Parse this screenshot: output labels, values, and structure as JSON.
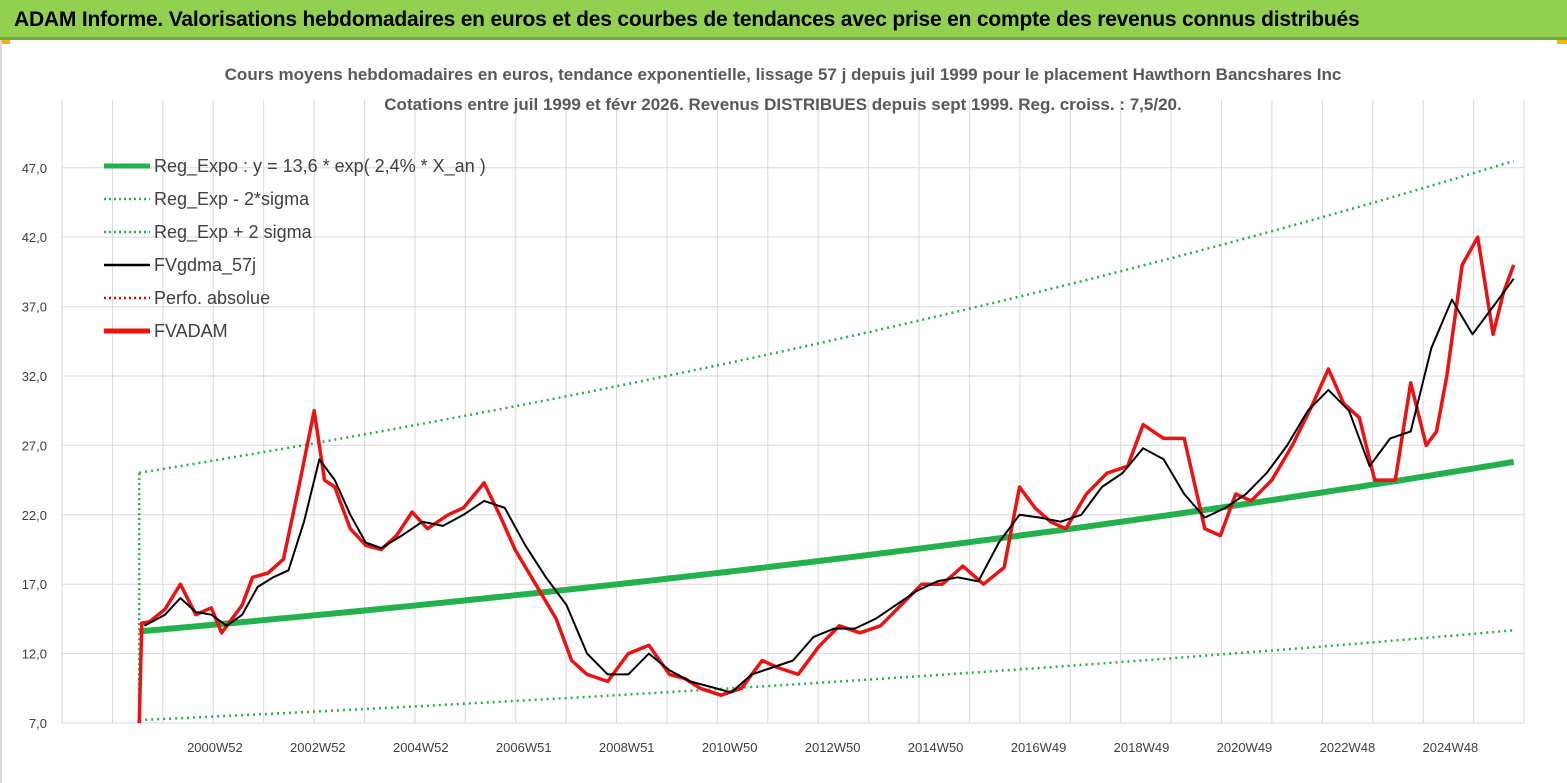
{
  "header": {
    "title": "ADAM Informe. Valorisations hebdomadaires en euros et des courbes de tendances avec prise en compte des revenus connus distribués"
  },
  "colors": {
    "banner": "#92d050",
    "reg_expo": "#22b14c",
    "sigma": "#22b14c",
    "fvgdma": "#000000",
    "perfo": "#e00000",
    "fvadam": "#ee1111",
    "grid": "#d9d9d9"
  },
  "chart_data": {
    "type": "line",
    "title": "Cours moyens hebdomadaires en euros, tendance exponentielle, lissage 57 j depuis juil 1999 pour le placement Hawthorn Bancshares Inc",
    "subtitle": "Cotations entre juil 1999 et févr 2026. Revenus DISTRIBUES depuis sept 1999. Reg. croiss. : 7,5/20.",
    "xlabel": "",
    "ylabel": "",
    "ylim": [
      7,
      49
    ],
    "yticks": [
      "7,0",
      "12,0",
      "17,0",
      "22,0",
      "27,0",
      "32,0",
      "37,0",
      "42,0",
      "47,0"
    ],
    "xticks": [
      "2000W52",
      "2002W52",
      "2004W52",
      "2006W51",
      "2008W51",
      "2010W50",
      "2012W50",
      "2014W50",
      "2016W49",
      "2018W49",
      "2020W49",
      "2022W48",
      "2024W48"
    ],
    "xlim": [
      1998.0,
      2026.4
    ],
    "grid": true,
    "legend_position": "top-left",
    "legend": [
      {
        "name": "Reg_Expo : y = 13,6 * exp( 2,4% *  X_an )",
        "style": "solid-thick",
        "color": "#22b14c"
      },
      {
        "name": "Reg_Exp - 2*sigma",
        "style": "dotted",
        "color": "#22b14c"
      },
      {
        "name": "Reg_Exp + 2 sigma",
        "style": "dotted",
        "color": "#22b14c"
      },
      {
        "name": "FVgdma_57j",
        "style": "solid",
        "color": "#000000"
      },
      {
        "name": "Perfo. absolue",
        "style": "dotted",
        "color": "#e00000"
      },
      {
        "name": "FVADAM",
        "style": "solid-thick",
        "color": "#ee1111"
      }
    ],
    "regression": {
      "a": 13.6,
      "b": 0.024,
      "start": 1999.5,
      "end": 2026.2,
      "lower_factor": 0.53,
      "upper_factor": 1.84
    },
    "series": [
      {
        "name": "FVADAM",
        "x": [
          1999.5,
          1999.55,
          1999.7,
          2000.0,
          2000.3,
          2000.6,
          2000.9,
          2001.1,
          2001.3,
          2001.5,
          2001.7,
          2002.0,
          2002.3,
          2002.6,
          2002.9,
          2003.1,
          2003.3,
          2003.5,
          2003.6,
          2003.9,
          2004.2,
          2004.5,
          2004.8,
          2005.1,
          2005.5,
          2005.8,
          2006.2,
          2006.5,
          2006.8,
          2007.2,
          2007.6,
          2007.9,
          2008.2,
          2008.6,
          2009.0,
          2009.4,
          2009.8,
          2010.1,
          2010.4,
          2010.8,
          2011.2,
          2011.6,
          2011.9,
          2012.3,
          2012.7,
          2013.1,
          2013.5,
          2013.9,
          2014.3,
          2014.7,
          2015.1,
          2015.5,
          2015.9,
          2016.3,
          2016.6,
          2016.9,
          2017.2,
          2017.5,
          2017.9,
          2018.3,
          2018.7,
          2019.0,
          2019.4,
          2019.8,
          2020.2,
          2020.5,
          2020.8,
          2021.1,
          2021.5,
          2021.9,
          2022.3,
          2022.6,
          2022.9,
          2023.2,
          2023.5,
          2023.9,
          2024.2,
          2024.5,
          2024.7,
          2024.9,
          2025.2,
          2025.5,
          2025.8,
          2026.0,
          2026.2
        ],
        "values": [
          7.0,
          14.2,
          14.3,
          15.2,
          17.0,
          14.8,
          15.3,
          13.5,
          14.5,
          15.5,
          17.5,
          17.8,
          18.8,
          24.0,
          29.5,
          24.5,
          24.0,
          22.0,
          21.0,
          19.8,
          19.5,
          20.5,
          22.2,
          21.0,
          22.0,
          22.5,
          24.3,
          22.0,
          19.5,
          17.0,
          14.5,
          11.5,
          10.5,
          10.0,
          12.0,
          12.6,
          10.5,
          10.2,
          9.5,
          9.0,
          9.5,
          11.5,
          11.0,
          10.5,
          12.5,
          14.0,
          13.5,
          14.0,
          15.5,
          17.0,
          17.0,
          18.3,
          17.0,
          18.2,
          24.0,
          22.5,
          21.5,
          21.0,
          23.5,
          25.0,
          25.5,
          28.5,
          27.5,
          27.5,
          21.0,
          20.5,
          23.5,
          23.0,
          24.5,
          27.0,
          30.0,
          32.5,
          30.0,
          29.0,
          24.5,
          24.5,
          31.5,
          27.0,
          28.0,
          32.0,
          40.0,
          42.0,
          35.0,
          38.0,
          40.0
        ]
      },
      {
        "name": "FVgdma_57j",
        "x": [
          1999.6,
          2000.0,
          2000.3,
          2000.6,
          2000.9,
          2001.2,
          2001.5,
          2001.8,
          2002.1,
          2002.4,
          2002.7,
          2003.0,
          2003.3,
          2003.6,
          2003.9,
          2004.2,
          2004.6,
          2005.0,
          2005.4,
          2005.8,
          2006.2,
          2006.6,
          2007.0,
          2007.4,
          2007.8,
          2008.2,
          2008.6,
          2009.0,
          2009.4,
          2009.8,
          2010.2,
          2010.6,
          2011.0,
          2011.4,
          2011.8,
          2012.2,
          2012.6,
          2013.0,
          2013.4,
          2013.8,
          2014.2,
          2014.6,
          2015.0,
          2015.4,
          2015.8,
          2016.2,
          2016.6,
          2017.0,
          2017.4,
          2017.8,
          2018.2,
          2018.6,
          2019.0,
          2019.4,
          2019.8,
          2020.2,
          2020.6,
          2021.0,
          2021.4,
          2021.8,
          2022.2,
          2022.6,
          2023.0,
          2023.4,
          2023.8,
          2024.2,
          2024.6,
          2025.0,
          2025.4,
          2025.8,
          2026.2
        ],
        "values": [
          14.0,
          14.8,
          16.0,
          15.0,
          14.8,
          14.0,
          14.8,
          16.8,
          17.5,
          18.0,
          21.5,
          26.0,
          24.5,
          22.0,
          20.0,
          19.6,
          20.5,
          21.5,
          21.2,
          22.0,
          23.0,
          22.5,
          19.8,
          17.5,
          15.5,
          12.0,
          10.5,
          10.5,
          12.0,
          10.8,
          10.0,
          9.6,
          9.2,
          10.5,
          11.0,
          11.5,
          13.2,
          13.8,
          13.8,
          14.5,
          15.5,
          16.5,
          17.2,
          17.5,
          17.2,
          20.0,
          22.0,
          21.8,
          21.5,
          22.0,
          24.0,
          25.0,
          26.8,
          26.0,
          23.5,
          21.8,
          22.5,
          23.5,
          25.0,
          27.0,
          29.5,
          31.0,
          29.5,
          25.5,
          27.5,
          28.0,
          34.0,
          37.5,
          35.0,
          37.0,
          39.0
        ]
      }
    ]
  }
}
